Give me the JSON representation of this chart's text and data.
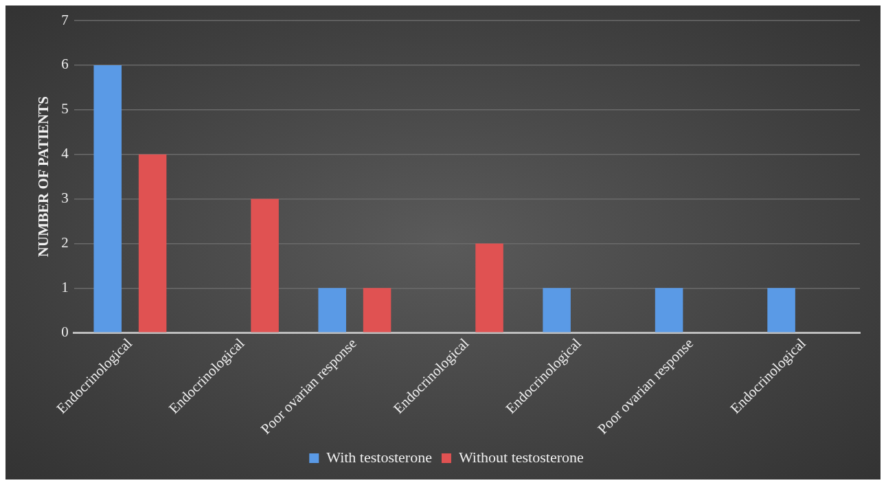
{
  "chart_data": {
    "type": "bar",
    "ylabel": "NUMBER OF PATIENTS",
    "categories": [
      "Endocrinological",
      "Endocrinological",
      "Poor ovarian response",
      "Endocrinological",
      "Endocrinological",
      "Poor ovarian response",
      "Endocrinological"
    ],
    "series": [
      {
        "name": "With testosterone",
        "color": "#5a9ae6",
        "values": [
          6,
          0,
          1,
          0,
          1,
          1,
          1
        ]
      },
      {
        "name": "Without testosterone",
        "color": "#e05252",
        "values": [
          4,
          3,
          1,
          2,
          0,
          0,
          0
        ]
      }
    ],
    "ylim": [
      0,
      7
    ],
    "yticks": [
      0,
      1,
      2,
      3,
      4,
      5,
      6,
      7
    ],
    "grid": "y",
    "legend": "bottom"
  }
}
